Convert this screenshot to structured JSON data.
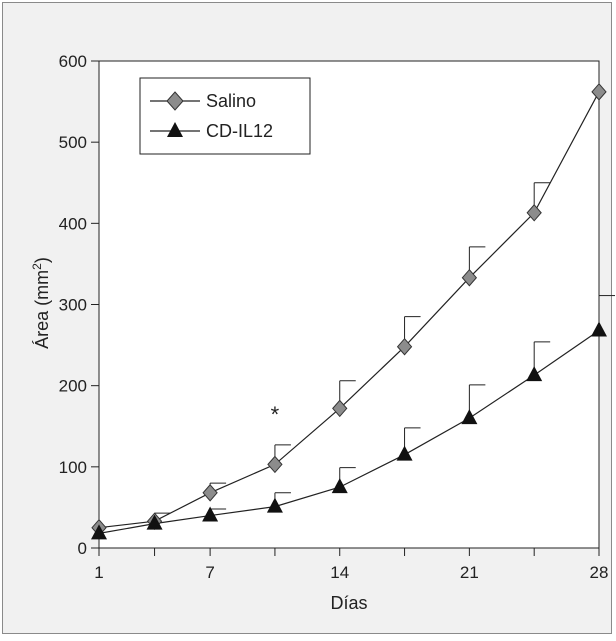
{
  "chart_data": {
    "type": "line",
    "xlabel": "Días",
    "ylabel_main": "Área (mm",
    "ylabel_sup": "2",
    "ylabel_close": ")",
    "ylim": [
      0,
      600
    ],
    "xlim": [
      1,
      28
    ],
    "x_ticks": [
      1,
      7,
      14,
      21,
      28
    ],
    "y_ticks": [
      0,
      100,
      200,
      300,
      400,
      500,
      600
    ],
    "legend_position": "top-left",
    "annotation": "*",
    "annotation_x": 10.5,
    "annotation_y": 175,
    "series": [
      {
        "name": "Salino",
        "marker": "diamond",
        "color": "#8c8c8c",
        "x": [
          1,
          4,
          7,
          10.5,
          14,
          17.5,
          21,
          24.5,
          28
        ],
        "y": [
          25,
          33,
          68,
          103,
          172,
          248,
          333,
          413,
          562
        ],
        "err": [
          0,
          10,
          12,
          24,
          34,
          37,
          38,
          37,
          0
        ]
      },
      {
        "name": "CD-IL12",
        "marker": "triangle",
        "color": "#111111",
        "x": [
          1,
          4,
          7,
          10.5,
          14,
          17.5,
          21,
          24.5,
          28
        ],
        "y": [
          18,
          30,
          40,
          51,
          75,
          115,
          160,
          213,
          268
        ],
        "err": [
          0,
          0,
          8,
          17,
          24,
          33,
          41,
          41,
          43
        ]
      }
    ]
  }
}
